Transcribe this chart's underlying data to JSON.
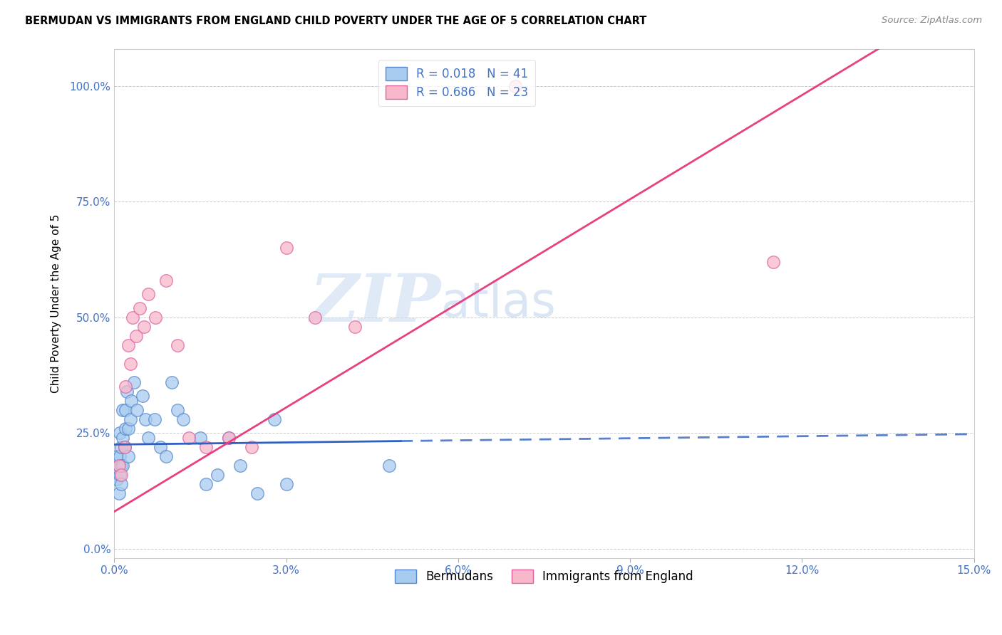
{
  "title": "BERMUDAN VS IMMIGRANTS FROM ENGLAND CHILD POVERTY UNDER THE AGE OF 5 CORRELATION CHART",
  "source": "Source: ZipAtlas.com",
  "xlabel_vals": [
    0.0,
    3.0,
    6.0,
    9.0,
    12.0,
    15.0
  ],
  "ylabel_vals": [
    0.0,
    25.0,
    50.0,
    75.0,
    100.0
  ],
  "xlim": [
    0.0,
    15.0
  ],
  "ylim": [
    -2.0,
    108.0
  ],
  "watermark_zip": "ZIP",
  "watermark_atlas": "atlas",
  "legend_label1": "Bermudans",
  "legend_label2": "Immigrants from England",
  "R1": 0.018,
  "N1": 41,
  "R2": 0.686,
  "N2": 23,
  "color1": "#a8ccf0",
  "color2": "#f7b8cb",
  "edge_color1": "#5588cc",
  "edge_color2": "#e060a0",
  "line_color1": "#3060c0",
  "line_color2": "#e84080",
  "bermudans_x": [
    0.05,
    0.05,
    0.08,
    0.08,
    0.1,
    0.1,
    0.1,
    0.12,
    0.12,
    0.12,
    0.15,
    0.15,
    0.15,
    0.18,
    0.2,
    0.2,
    0.22,
    0.25,
    0.25,
    0.28,
    0.3,
    0.35,
    0.4,
    0.5,
    0.55,
    0.6,
    0.7,
    0.8,
    0.9,
    1.0,
    1.1,
    1.2,
    1.5,
    1.6,
    1.8,
    2.0,
    2.2,
    2.5,
    2.8,
    3.0,
    4.8
  ],
  "bermudans_y": [
    20.0,
    15.0,
    18.0,
    12.0,
    25.0,
    20.0,
    16.0,
    22.0,
    18.0,
    14.0,
    30.0,
    24.0,
    18.0,
    22.0,
    30.0,
    26.0,
    34.0,
    26.0,
    20.0,
    28.0,
    32.0,
    36.0,
    30.0,
    33.0,
    28.0,
    24.0,
    28.0,
    22.0,
    20.0,
    36.0,
    30.0,
    28.0,
    24.0,
    14.0,
    16.0,
    24.0,
    18.0,
    12.0,
    28.0,
    14.0,
    18.0
  ],
  "england_x": [
    0.08,
    0.12,
    0.18,
    0.2,
    0.25,
    0.28,
    0.32,
    0.38,
    0.45,
    0.52,
    0.6,
    0.72,
    0.9,
    1.1,
    1.3,
    1.6,
    2.0,
    2.4,
    3.5,
    4.2,
    7.0,
    11.5,
    3.0
  ],
  "england_y": [
    18.0,
    16.0,
    22.0,
    35.0,
    44.0,
    40.0,
    50.0,
    46.0,
    52.0,
    48.0,
    55.0,
    50.0,
    58.0,
    44.0,
    24.0,
    22.0,
    24.0,
    22.0,
    50.0,
    48.0,
    100.0,
    62.0,
    65.0
  ],
  "blue_line_intercept": 22.5,
  "blue_line_slope": 0.15,
  "blue_line_solid_end": 5.0,
  "pink_line_intercept": 8.0,
  "pink_line_slope": 7.5
}
